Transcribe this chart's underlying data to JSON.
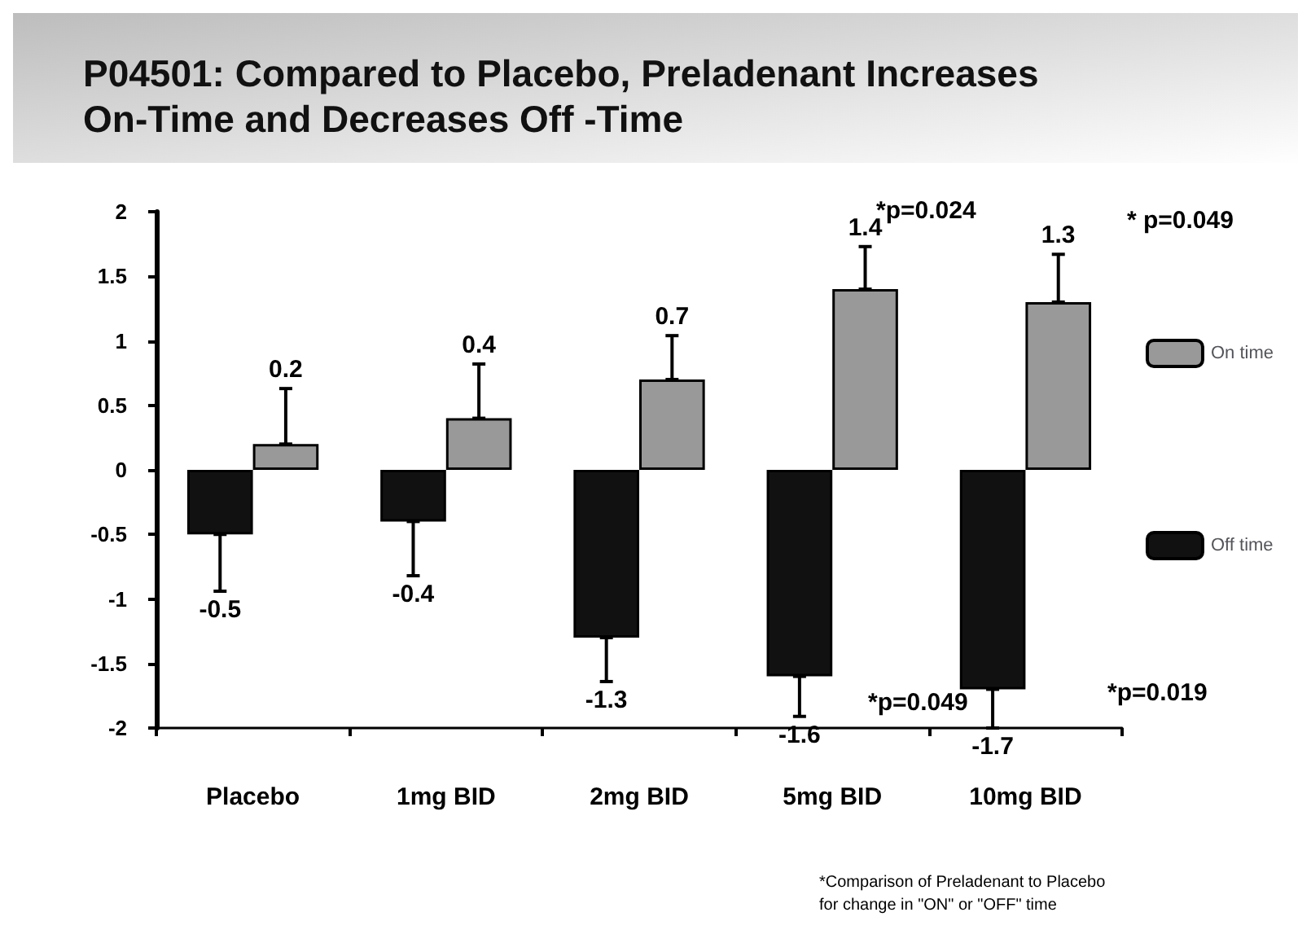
{
  "chart_data": {
    "type": "bar",
    "title": "P04501: Compared to Placebo, Preladenant Increases On-Time and Decreases Off -Time",
    "categories": [
      "Placebo",
      "1mg BID",
      "2mg BID",
      "5mg BID",
      "10mg BID"
    ],
    "series": [
      {
        "name": "Off time",
        "color": "#111111",
        "values": [
          -0.5,
          -0.4,
          -1.3,
          -1.6,
          -1.7
        ],
        "errors": [
          [
            -0.94,
            -0.5
          ],
          [
            -0.82,
            -0.4
          ],
          [
            -1.64,
            -1.3
          ],
          [
            -1.91,
            -1.6
          ],
          [
            -2.0,
            -1.7
          ]
        ]
      },
      {
        "name": "On time",
        "color": "#999999",
        "values": [
          0.2,
          0.4,
          0.7,
          1.4,
          1.3
        ],
        "errors": [
          [
            0.2,
            0.63
          ],
          [
            0.4,
            0.82
          ],
          [
            0.7,
            1.04
          ],
          [
            1.4,
            1.73
          ],
          [
            1.3,
            1.67
          ]
        ]
      }
    ],
    "ylim": [
      -2,
      2
    ],
    "yticks": [
      -2,
      -1.5,
      -1,
      -0.5,
      0,
      0.5,
      1,
      1.5,
      2
    ],
    "grid": false,
    "legend": "right",
    "data_labels": true,
    "annotations": [
      "*p=0.024",
      "* p=0.049",
      "*p=0.049",
      "*p=0.019",
      "*Comparison of Preladenant to Placebo\nfor change in \"ON\" or \"OFF\" time"
    ]
  }
}
